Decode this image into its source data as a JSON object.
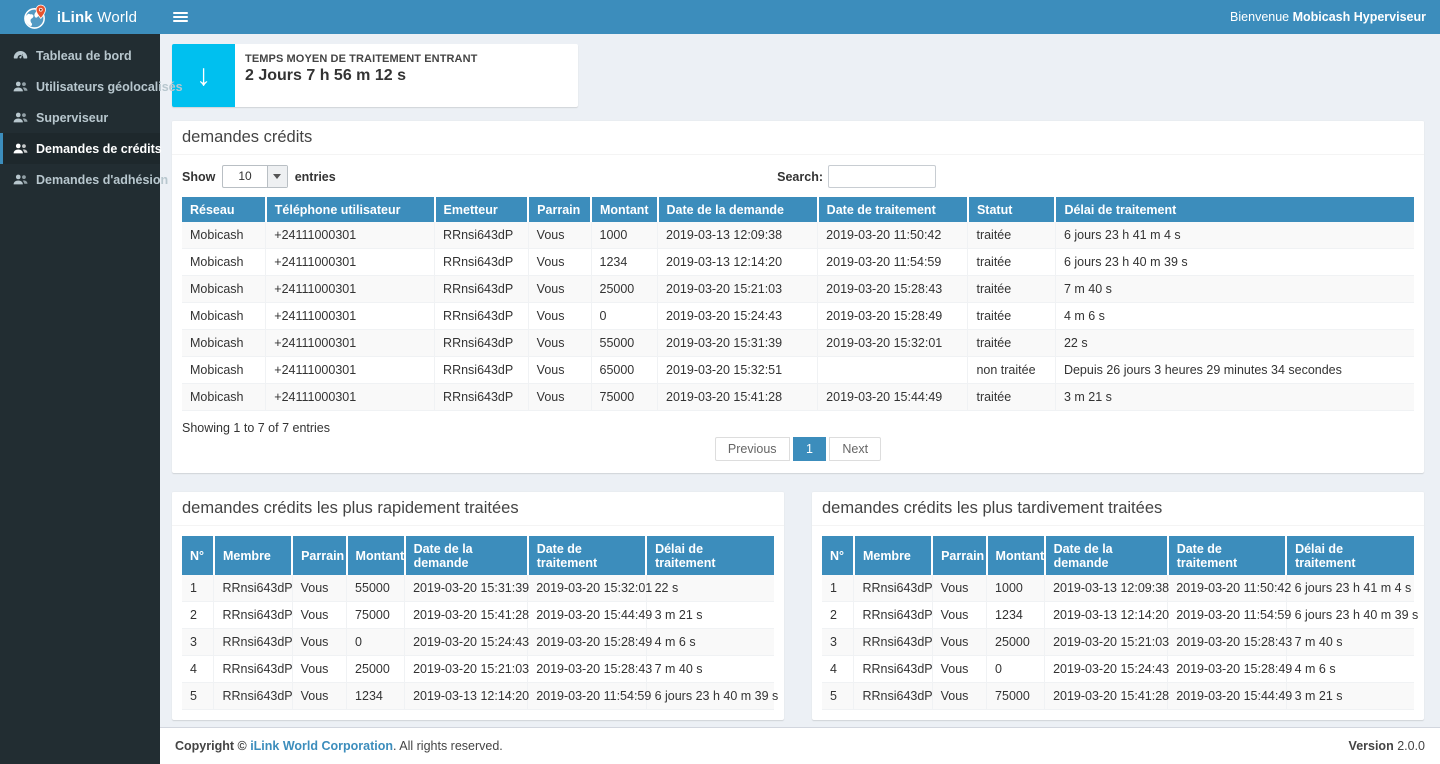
{
  "brand": {
    "name_bold": "iLink",
    "name_light": " World"
  },
  "topbar": {
    "welcome_prefix": "Bienvenue ",
    "welcome_user": "Mobicash Hyperviseur"
  },
  "sidebar": {
    "items": [
      {
        "label": "Tableau de bord",
        "icon": "dashboard-icon",
        "active": false
      },
      {
        "label": "Utilisateurs géolocalisés",
        "icon": "users-icon",
        "active": false
      },
      {
        "label": "Superviseur",
        "icon": "users-icon",
        "active": false
      },
      {
        "label": "Demandes de crédits",
        "icon": "users-icon",
        "active": true
      },
      {
        "label": "Demandes d'adhésion",
        "icon": "users-icon",
        "active": false
      }
    ]
  },
  "stat_card": {
    "label": "TEMPS MOYEN DE TRAITEMENT ENTRANT",
    "value": "2 Jours 7 h 56 m 12 s",
    "icon": "arrow-down-icon",
    "icon_glyph": "↓",
    "icon_bg": "#00c0ef"
  },
  "credits_panel": {
    "title": "demandes crédits",
    "show_label": "Show",
    "page_length": "10",
    "entries_label": "entries",
    "search_label": "Search:",
    "search_value": "",
    "table": {
      "columns": [
        "Réseau",
        "Téléphone utilisateur",
        "Emetteur",
        "Parrain",
        "Montant",
        "Date de la demande",
        "Date de traitement",
        "Statut",
        "Délai de traitement"
      ],
      "rows": [
        [
          "Mobicash",
          "+24111000301",
          "RRnsi643dP",
          "Vous",
          "1000",
          "2019-03-13 12:09:38",
          "2019-03-20 11:50:42",
          "traitée",
          "6 jours 23 h 41 m 4 s"
        ],
        [
          "Mobicash",
          "+24111000301",
          "RRnsi643dP",
          "Vous",
          "1234",
          "2019-03-13 12:14:20",
          "2019-03-20 11:54:59",
          "traitée",
          "6 jours 23 h 40 m 39 s"
        ],
        [
          "Mobicash",
          "+24111000301",
          "RRnsi643dP",
          "Vous",
          "25000",
          "2019-03-20 15:21:03",
          "2019-03-20 15:28:43",
          "traitée",
          "7 m 40 s"
        ],
        [
          "Mobicash",
          "+24111000301",
          "RRnsi643dP",
          "Vous",
          "0",
          "2019-03-20 15:24:43",
          "2019-03-20 15:28:49",
          "traitée",
          "4 m 6 s"
        ],
        [
          "Mobicash",
          "+24111000301",
          "RRnsi643dP",
          "Vous",
          "55000",
          "2019-03-20 15:31:39",
          "2019-03-20 15:32:01",
          "traitée",
          "22 s"
        ],
        [
          "Mobicash",
          "+24111000301",
          "RRnsi643dP",
          "Vous",
          "65000",
          "2019-03-20 15:32:51",
          "",
          "non traitée",
          "Depuis 26 jours 3 heures 29 minutes 34 secondes"
        ],
        [
          "Mobicash",
          "+24111000301",
          "RRnsi643dP",
          "Vous",
          "75000",
          "2019-03-20 15:41:28",
          "2019-03-20 15:44:49",
          "traitée",
          "3 m 21 s"
        ]
      ]
    },
    "info": "Showing 1 to 7 of 7 entries",
    "pagination": {
      "previous": "Previous",
      "page": "1",
      "next": "Next"
    }
  },
  "fastest_panel": {
    "title": "demandes crédits les plus rapidement traitées",
    "table": {
      "columns": [
        "N°",
        "Membre",
        "Parrain",
        "Montant",
        "Date de la demande",
        "Date de traitement",
        "Délai de traitement"
      ],
      "rows": [
        [
          "1",
          "RRnsi643dP",
          "Vous",
          "55000",
          "2019-03-20 15:31:39",
          "2019-03-20 15:32:01",
          "22 s"
        ],
        [
          "2",
          "RRnsi643dP",
          "Vous",
          "75000",
          "2019-03-20 15:41:28",
          "2019-03-20 15:44:49",
          "3 m 21 s"
        ],
        [
          "3",
          "RRnsi643dP",
          "Vous",
          "0",
          "2019-03-20 15:24:43",
          "2019-03-20 15:28:49",
          "4 m 6 s"
        ],
        [
          "4",
          "RRnsi643dP",
          "Vous",
          "25000",
          "2019-03-20 15:21:03",
          "2019-03-20 15:28:43",
          "7 m 40 s"
        ],
        [
          "5",
          "RRnsi643dP",
          "Vous",
          "1234",
          "2019-03-13 12:14:20",
          "2019-03-20 11:54:59",
          "6 jours 23 h 40 m 39 s"
        ]
      ]
    }
  },
  "slowest_panel": {
    "title": "demandes crédits les plus tardivement traitées",
    "table": {
      "columns": [
        "N°",
        "Membre",
        "Parrain",
        "Montant",
        "Date de la demande",
        "Date de traitement",
        "Délai de traitement"
      ],
      "rows": [
        [
          "1",
          "RRnsi643dP",
          "Vous",
          "1000",
          "2019-03-13 12:09:38",
          "2019-03-20 11:50:42",
          "6 jours 23 h 41 m 4 s"
        ],
        [
          "2",
          "RRnsi643dP",
          "Vous",
          "1234",
          "2019-03-13 12:14:20",
          "2019-03-20 11:54:59",
          "6 jours 23 h 40 m 39 s"
        ],
        [
          "3",
          "RRnsi643dP",
          "Vous",
          "25000",
          "2019-03-20 15:21:03",
          "2019-03-20 15:28:43",
          "7 m 40 s"
        ],
        [
          "4",
          "RRnsi643dP",
          "Vous",
          "0",
          "2019-03-20 15:24:43",
          "2019-03-20 15:28:49",
          "4 m 6 s"
        ],
        [
          "5",
          "RRnsi643dP",
          "Vous",
          "75000",
          "2019-03-20 15:41:28",
          "2019-03-20 15:44:49",
          "3 m 21 s"
        ]
      ]
    }
  },
  "footer": {
    "copyright_prefix": "Copyright © ",
    "company": "iLink World Corporation",
    "copyright_suffix": ". All rights reserved.",
    "version_label": "Version",
    "version_value": " 2.0.0"
  },
  "colors": {
    "header_blue": "#3c8dbc",
    "sidebar_bg": "#222d32",
    "sidebar_active_bg": "#1e282c",
    "sidebar_text": "#b8c7ce",
    "stat_icon_cyan": "#00c0ef",
    "content_bg": "#ecf0f5",
    "stripe": "#f9f9f9",
    "pin_orange": "#e8542f"
  }
}
